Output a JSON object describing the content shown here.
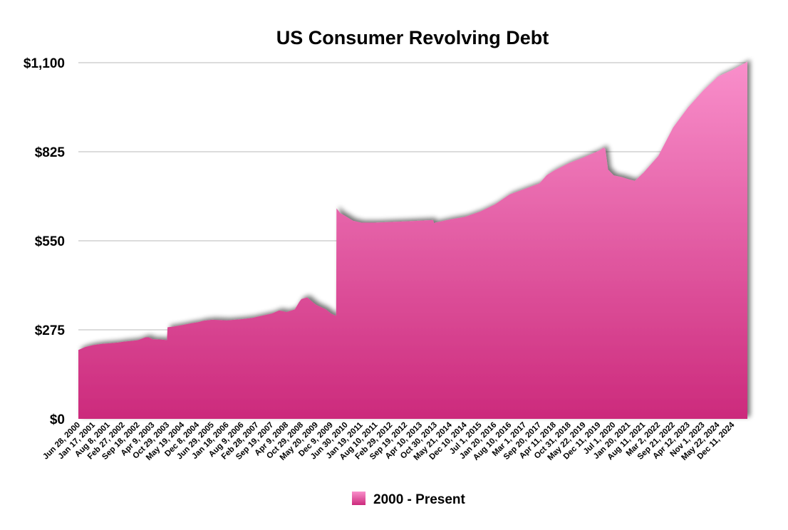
{
  "chart_data": {
    "type": "area",
    "title": "US Consumer Revolving Debt",
    "xlabel": "",
    "ylabel": "",
    "ylim": [
      0,
      1100
    ],
    "yticks": [
      {
        "value": 0,
        "label": "$0"
      },
      {
        "value": 275,
        "label": "$275"
      },
      {
        "value": 550,
        "label": "$550"
      },
      {
        "value": 825,
        "label": "$825"
      },
      {
        "value": 1100,
        "label": "$1,100"
      }
    ],
    "xlim": [
      "2000-06-28",
      "2025-06-30"
    ],
    "xticks": [
      "Jun 28, 2000",
      "Jan 17, 2001",
      "Aug 8, 2001",
      "Feb 27, 2002",
      "Sep 18, 2002",
      "Apr 9, 2003",
      "Oct 29, 2003",
      "May 19, 2004",
      "Dec 8, 2004",
      "Jun 29, 2005",
      "Jan 18, 2006",
      "Aug 9, 2006",
      "Feb 28, 2007",
      "Sep 19, 2007",
      "Apr 9, 2008",
      "Oct 29, 2008",
      "May 20, 2009",
      "Dec 9, 2009",
      "Jun 30, 2010",
      "Jan 19, 2011",
      "Aug 10, 2011",
      "Feb 29, 2012",
      "Sep 19, 2012",
      "Apr 10, 2013",
      "Oct 30, 2013",
      "May 21, 2014",
      "Dec 10, 2014",
      "Jul 1, 2015",
      "Jan 20, 2016",
      "Aug 10, 2016",
      "Mar 1, 2017",
      "Sep 20, 2017",
      "Apr 11, 2018",
      "Oct 31, 2018",
      "May 22, 2019",
      "Dec 11, 2019",
      "Jul 1, 2020",
      "Jan 20, 2021",
      "Aug 11, 2021",
      "Mar 2, 2022",
      "Sep 21, 2022",
      "Apr 12, 2023",
      "Nov 1, 2023",
      "May 22, 2024",
      "Dec 11, 2024"
    ],
    "grid": true,
    "legend_position": "bottom",
    "colors": {
      "fill_top": "#f98fcb",
      "fill_bottom": "#cc2a7c",
      "grid": "#b8b8b8"
    },
    "series": [
      {
        "name": "2000 - Present",
        "points": [
          [
            "2000-06-28",
            213
          ],
          [
            "2000-09-30",
            222
          ],
          [
            "2001-01-17",
            228
          ],
          [
            "2001-06-01",
            232
          ],
          [
            "2001-08-08",
            233
          ],
          [
            "2001-12-31",
            236
          ],
          [
            "2002-02-27",
            238
          ],
          [
            "2002-06-30",
            241
          ],
          [
            "2002-09-18",
            243
          ],
          [
            "2002-12-31",
            252
          ],
          [
            "2003-02-15",
            252
          ],
          [
            "2003-04-09",
            246
          ],
          [
            "2003-08-01",
            245
          ],
          [
            "2003-10-20",
            243
          ],
          [
            "2003-10-29",
            283
          ],
          [
            "2004-01-15",
            285
          ],
          [
            "2004-05-19",
            290
          ],
          [
            "2004-09-30",
            296
          ],
          [
            "2004-12-08",
            298
          ],
          [
            "2005-03-01",
            303
          ],
          [
            "2005-06-29",
            306
          ],
          [
            "2006-01-18",
            304
          ],
          [
            "2006-08-09",
            308
          ],
          [
            "2006-12-31",
            312
          ],
          [
            "2007-02-28",
            315
          ],
          [
            "2007-09-19",
            325
          ],
          [
            "2007-12-31",
            335
          ],
          [
            "2008-04-09",
            330
          ],
          [
            "2008-07-31",
            338
          ],
          [
            "2008-10-01",
            362
          ],
          [
            "2008-10-29",
            370
          ],
          [
            "2009-01-15",
            375
          ],
          [
            "2009-04-15",
            358
          ],
          [
            "2009-05-20",
            352
          ],
          [
            "2009-09-30",
            338
          ],
          [
            "2009-12-09",
            325
          ],
          [
            "2010-02-15",
            318
          ],
          [
            "2010-02-20",
            650
          ],
          [
            "2010-04-15",
            635
          ],
          [
            "2010-06-30",
            625
          ],
          [
            "2010-10-01",
            612
          ],
          [
            "2011-01-19",
            606
          ],
          [
            "2011-08-10",
            606
          ],
          [
            "2012-02-29",
            608
          ],
          [
            "2012-09-19",
            610
          ],
          [
            "2013-04-10",
            612
          ],
          [
            "2013-09-30",
            614
          ],
          [
            "2013-10-15",
            604
          ],
          [
            "2013-10-30",
            606
          ],
          [
            "2014-05-21",
            616
          ],
          [
            "2014-12-10",
            624
          ],
          [
            "2015-07-01",
            640
          ],
          [
            "2016-01-20",
            662
          ],
          [
            "2016-08-10",
            693
          ],
          [
            "2017-03-01",
            710
          ],
          [
            "2017-09-20",
            727
          ],
          [
            "2017-12-31",
            753
          ],
          [
            "2018-04-11",
            767
          ],
          [
            "2018-10-31",
            790
          ],
          [
            "2019-05-22",
            808
          ],
          [
            "2019-12-11",
            828
          ],
          [
            "2020-02-15",
            838
          ],
          [
            "2020-03-10",
            833
          ],
          [
            "2020-04-15",
            770
          ],
          [
            "2020-07-01",
            752
          ],
          [
            "2020-10-15",
            747
          ],
          [
            "2021-01-20",
            740
          ],
          [
            "2021-04-15",
            735
          ],
          [
            "2021-08-11",
            760
          ],
          [
            "2022-03-02",
            812
          ],
          [
            "2022-09-21",
            900
          ],
          [
            "2023-04-12",
            962
          ],
          [
            "2023-11-01",
            1013
          ],
          [
            "2024-05-22",
            1057
          ],
          [
            "2024-12-11",
            1078
          ],
          [
            "2025-06-30",
            1103
          ]
        ]
      }
    ]
  }
}
